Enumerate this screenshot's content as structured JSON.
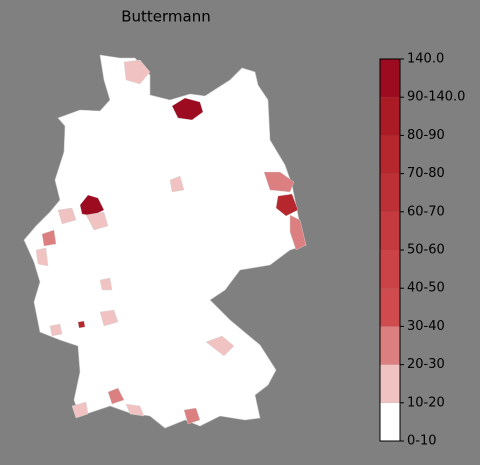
{
  "map": {
    "title": "Buttermann",
    "colorbar": {
      "labels": [
        "0-10",
        "10-20",
        "20-30",
        "30-40",
        "40-50",
        "50-60",
        "60-70",
        "70-80",
        "80-90",
        "90-140.0",
        "140.0"
      ],
      "colors": [
        "#ffffff",
        "#f0c2c2",
        "#dc7f80",
        "#cf4b4e",
        "#cb4346",
        "#c43a3e",
        "#bd3136",
        "#b5262d",
        "#ab1b26",
        "#9c0b1f"
      ]
    }
  }
}
